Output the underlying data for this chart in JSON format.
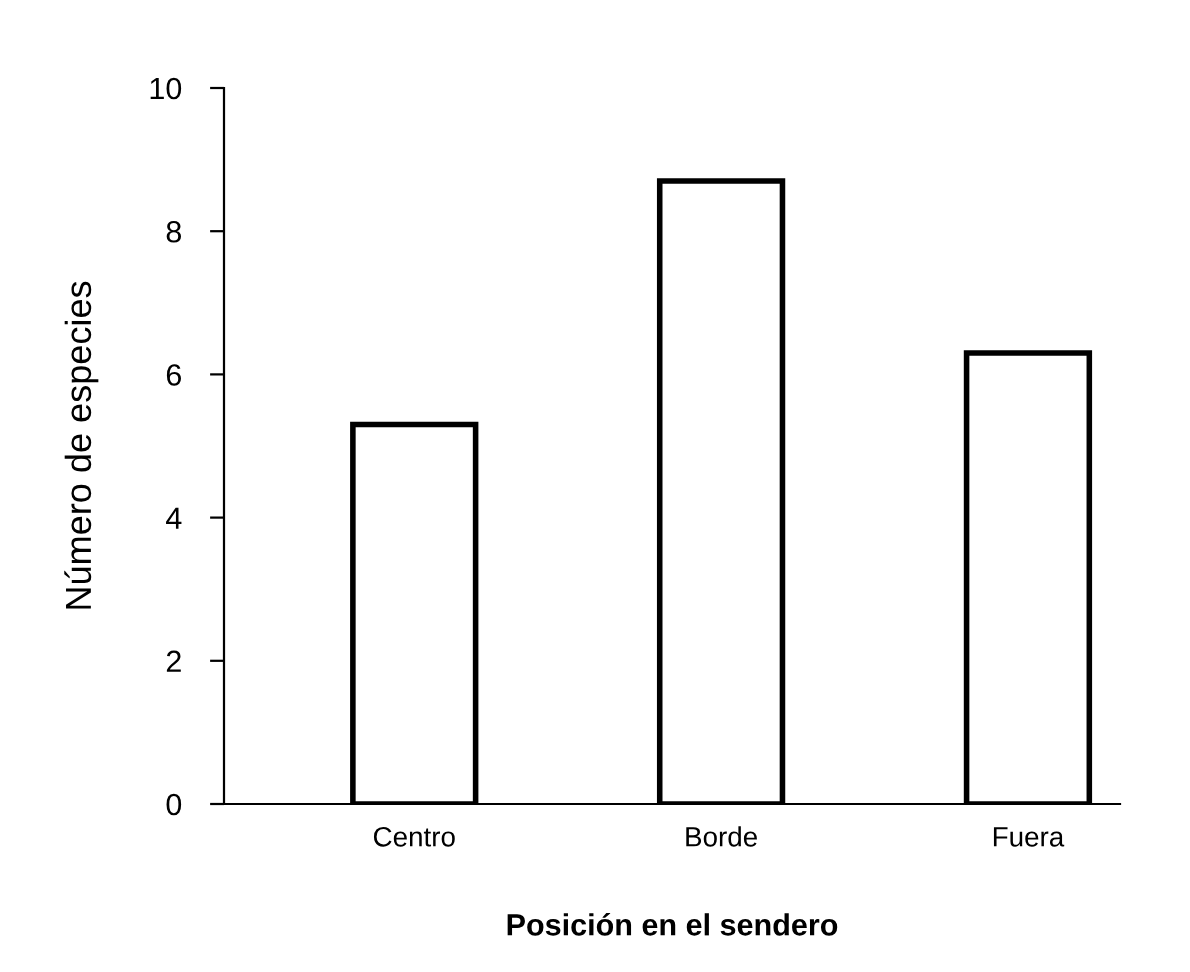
{
  "chart_data": {
    "type": "bar",
    "xlabel": "Posición en el sendero",
    "ylabel": "Número de especies",
    "categories": [
      "Centro",
      "Borde",
      "Fuera"
    ],
    "values": [
      5.3,
      8.7,
      6.3
    ],
    "color": "#ffffff",
    "ylim": [
      0,
      10
    ],
    "yticks": [
      0,
      2,
      4,
      6,
      8,
      10
    ],
    "grid": false,
    "legend": false
  }
}
